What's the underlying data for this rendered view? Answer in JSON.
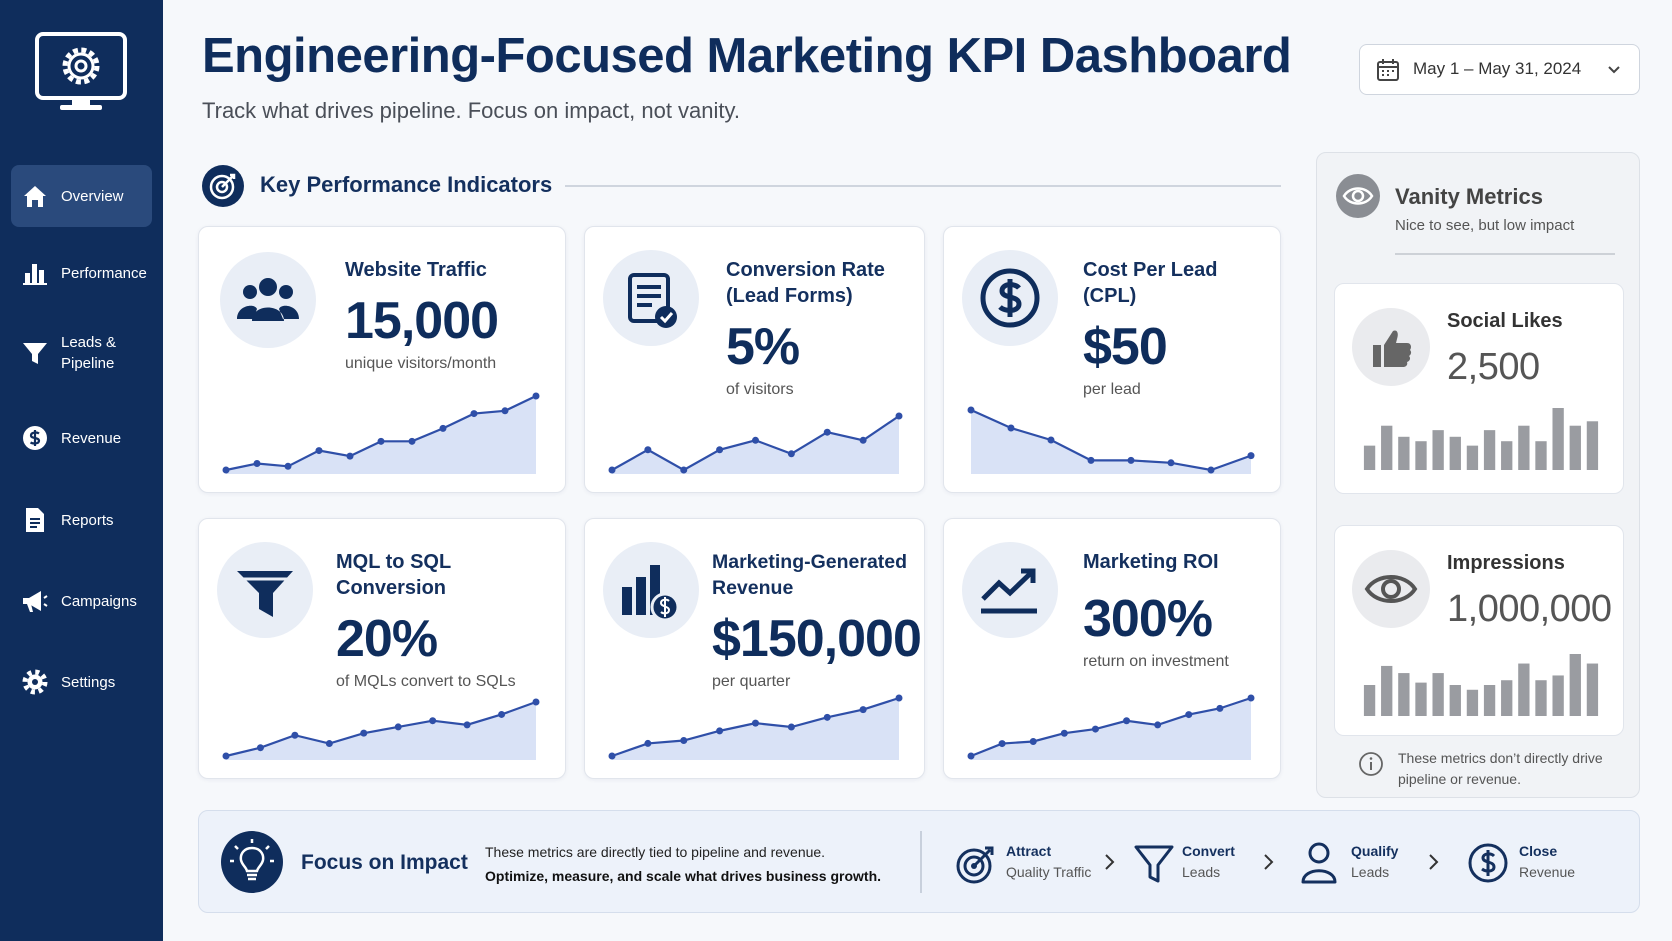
{
  "sidebar": {
    "nav": [
      "Overview",
      "Performance",
      "Leads & Pipeline",
      "Revenue",
      "Reports",
      "Campaigns",
      "Settings"
    ],
    "active": 0
  },
  "header": {
    "title": "Engineering-Focused Marketing KPI Dashboard",
    "subtitle": "Track what drives pipeline. Focus on impact, not vanity.",
    "date_range": "May 1 – May 31, 2024"
  },
  "kpi_section": {
    "title": "Key Performance Indicators",
    "cards": [
      {
        "title": "Website Traffic",
        "value": "15,000",
        "caption": "unique visitors/month",
        "trend": [
          5,
          12,
          9,
          26,
          20,
          36,
          36,
          50,
          66,
          69,
          85
        ]
      },
      {
        "title": "Conversion Rate (Lead Forms)",
        "value": "5%",
        "caption": "of visitors",
        "trend": [
          20,
          35,
          20,
          35,
          42,
          32,
          48,
          42,
          60
        ]
      },
      {
        "title": "Cost Per Lead (CPL)",
        "value": "$50",
        "caption": "per lead",
        "trend": [
          80,
          65,
          55,
          38,
          38,
          36,
          30,
          42
        ]
      },
      {
        "title": "MQL to SQL Conversion",
        "value": "20%",
        "caption": "of MQLs convert to SQLs",
        "trend": [
          10,
          18,
          30,
          22,
          32,
          38,
          44,
          40,
          50,
          62
        ]
      },
      {
        "title": "Marketing-Generated Revenue",
        "value": "$150,000",
        "caption": "per quarter",
        "trend": [
          12,
          25,
          28,
          38,
          46,
          42,
          52,
          60,
          72
        ]
      },
      {
        "title": "Marketing ROI",
        "value": "300%",
        "caption": "return on investment",
        "trend": [
          12,
          24,
          26,
          34,
          38,
          46,
          42,
          52,
          58,
          68
        ]
      }
    ]
  },
  "vanity": {
    "title": "Vanity Metrics",
    "subtitle": "Nice to see, but low impact",
    "cards": [
      {
        "title": "Social Likes",
        "value": "2,500",
        "bars": [
          22,
          40,
          30,
          26,
          36,
          30,
          22,
          36,
          26,
          40,
          26,
          56,
          40,
          44
        ]
      },
      {
        "title": "Impressions",
        "value": "1,000,000",
        "bars": [
          26,
          42,
          36,
          28,
          36,
          26,
          22,
          26,
          30,
          44,
          30,
          34,
          52,
          44
        ]
      }
    ],
    "note": "These metrics don’t directly drive pipeline or revenue."
  },
  "footer": {
    "title": "Focus on Impact",
    "text": "These metrics are directly tied to pipeline and revenue.",
    "emphasis": "Optimize, measure, and scale what drives business growth.",
    "steps": [
      {
        "label": "Attract",
        "sub": "Quality Traffic"
      },
      {
        "label": "Convert",
        "sub": "Leads"
      },
      {
        "label": "Qualify",
        "sub": "Leads"
      },
      {
        "label": "Close",
        "sub": "Revenue"
      }
    ]
  }
}
